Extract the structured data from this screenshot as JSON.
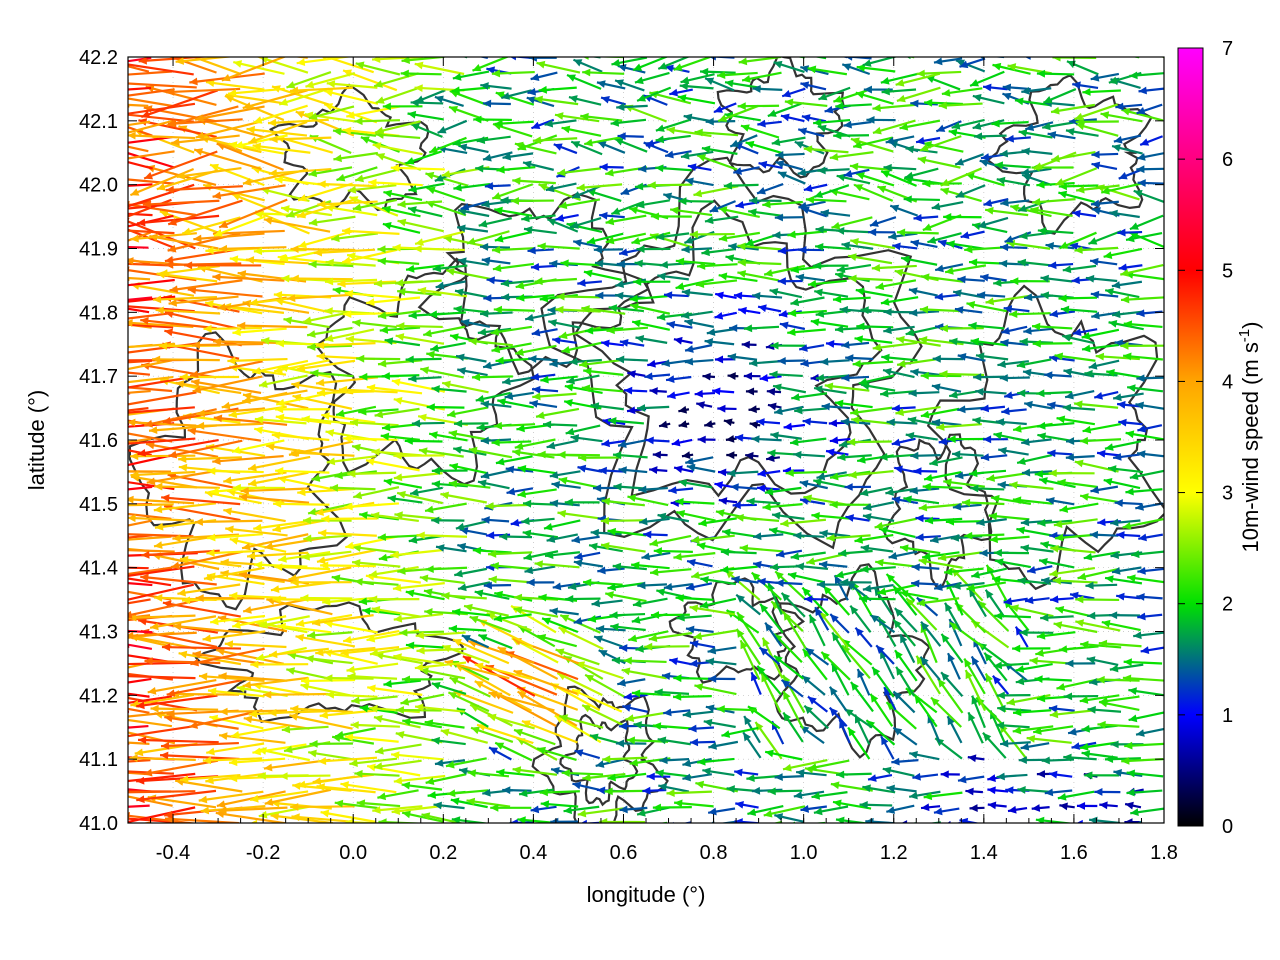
{
  "chart_data": {
    "type": "vector-field",
    "xlabel": "longitude (°)",
    "ylabel": "latitude (°)",
    "xlim": [
      -0.5,
      1.8
    ],
    "ylim": [
      41.0,
      42.2
    ],
    "xticks": [
      -0.4,
      -0.2,
      0.0,
      0.2,
      0.4,
      0.6,
      0.8,
      1.0,
      1.2,
      1.4,
      1.6,
      1.8
    ],
    "xtick_labels": [
      "-0.4",
      "-0.2",
      "0.0",
      "0.2",
      "0.4",
      "0.6",
      "0.8",
      "1.0",
      "1.2",
      "1.4",
      "1.6",
      "1.8"
    ],
    "yticks": [
      41.0,
      41.1,
      41.2,
      41.3,
      41.4,
      41.5,
      41.6,
      41.7,
      41.8,
      41.9,
      42.0,
      42.1,
      42.2
    ],
    "ytick_labels": [
      "41.0",
      "41.1",
      "41.2",
      "41.3",
      "41.4",
      "41.5",
      "41.6",
      "41.7",
      "41.8",
      "41.9",
      "42.0",
      "42.1",
      "42.2"
    ],
    "grid": true,
    "colorbar": {
      "label": "10m-wind speed (m s",
      "label_superscript": "-1",
      "label_suffix": ")",
      "range": [
        0,
        7
      ],
      "ticks": [
        0,
        1,
        2,
        3,
        4,
        5,
        6,
        7
      ],
      "tick_labels": [
        "0",
        "1",
        "2",
        "3",
        "4",
        "5",
        "6",
        "7"
      ],
      "colors": [
        "#000000",
        "#0000ff",
        "#00e000",
        "#ffff00",
        "#ffa500",
        "#ff0000",
        "#ff00ff"
      ]
    },
    "contour_color": "#333333",
    "vectors_sample": [
      {
        "lon": -0.45,
        "lat": 41.45,
        "u": -4.5,
        "v": 0.3,
        "speed": 4.5
      },
      {
        "lon": -0.3,
        "lat": 41.6,
        "u": -4.0,
        "v": 0.5,
        "speed": 4.0
      },
      {
        "lon": 0.0,
        "lat": 41.75,
        "u": -3.0,
        "v": 0.3,
        "speed": 3.0
      },
      {
        "lon": 0.4,
        "lat": 41.15,
        "u": -5.0,
        "v": 2.0,
        "speed": 5.4
      },
      {
        "lon": 0.9,
        "lat": 41.65,
        "u": -1.0,
        "v": 0.2,
        "speed": 1.0
      },
      {
        "lon": 1.6,
        "lat": 41.05,
        "u": -1.2,
        "v": 0.0,
        "speed": 1.2
      }
    ]
  }
}
